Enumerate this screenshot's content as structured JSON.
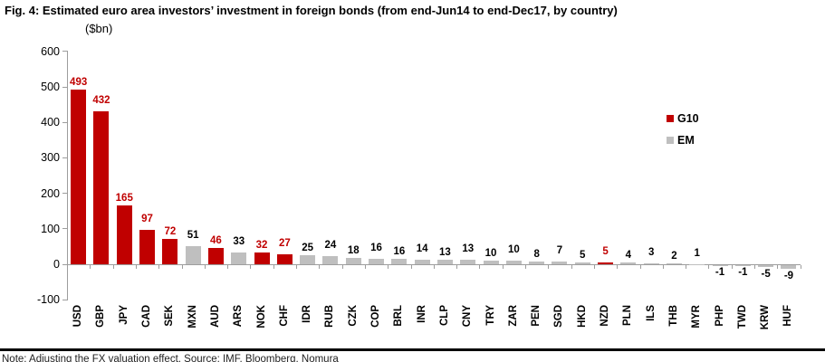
{
  "figure": {
    "title": "Fig. 4: Estimated euro area investors’ investment in foreign bonds (from end-Jun14 to end-Dec17, by country)",
    "unit_label": "($bn)",
    "note": "Note: Adjusting the FX valuation effect. Source: IMF, Bloomberg, Nomura"
  },
  "legend": {
    "items": [
      {
        "label": "G10",
        "color": "#c00000"
      },
      {
        "label": "EM",
        "color": "#bfbfbf"
      }
    ]
  },
  "colors": {
    "g10": "#c00000",
    "em": "#bfbfbf",
    "axis": "#9d9d9d",
    "label_g10": "#c00000",
    "label_em": "#000000"
  },
  "chart_data": {
    "type": "bar",
    "title": "Fig. 4: Estimated euro area investors’ investment in foreign bonds (from end-Jun14 to end-Dec17, by country)",
    "xlabel": "",
    "ylabel": "($bn)",
    "ylim": [
      -100,
      600
    ],
    "yticks": [
      600,
      500,
      400,
      300,
      200,
      100,
      0,
      -100
    ],
    "grid": false,
    "legend_position": "right",
    "categories": [
      "USD",
      "GBP",
      "JPY",
      "CAD",
      "SEK",
      "MXN",
      "AUD",
      "ARS",
      "NOK",
      "CHF",
      "IDR",
      "RUB",
      "CZK",
      "COP",
      "BRL",
      "INR",
      "CLP",
      "CNY",
      "TRY",
      "ZAR",
      "PEN",
      "SGD",
      "HKD",
      "NZD",
      "PLN",
      "ILS",
      "THB",
      "MYR",
      "PHP",
      "TWD",
      "KRW",
      "HUF"
    ],
    "values": [
      493,
      432,
      165,
      97,
      72,
      51,
      46,
      33,
      32,
      27,
      25,
      24,
      18,
      16,
      16,
      14,
      13,
      13,
      10,
      10,
      8,
      7,
      5,
      5,
      4,
      3,
      2,
      1,
      -1,
      -1,
      -5,
      -9
    ],
    "groups": [
      "G10",
      "G10",
      "G10",
      "G10",
      "G10",
      "EM",
      "G10",
      "EM",
      "G10",
      "G10",
      "EM",
      "EM",
      "EM",
      "EM",
      "EM",
      "EM",
      "EM",
      "EM",
      "EM",
      "EM",
      "EM",
      "EM",
      "EM",
      "G10",
      "EM",
      "EM",
      "EM",
      "EM",
      "EM",
      "EM",
      "EM",
      "EM"
    ],
    "series": [
      {
        "name": "G10",
        "color": "#c00000"
      },
      {
        "name": "EM",
        "color": "#bfbfbf"
      }
    ]
  }
}
